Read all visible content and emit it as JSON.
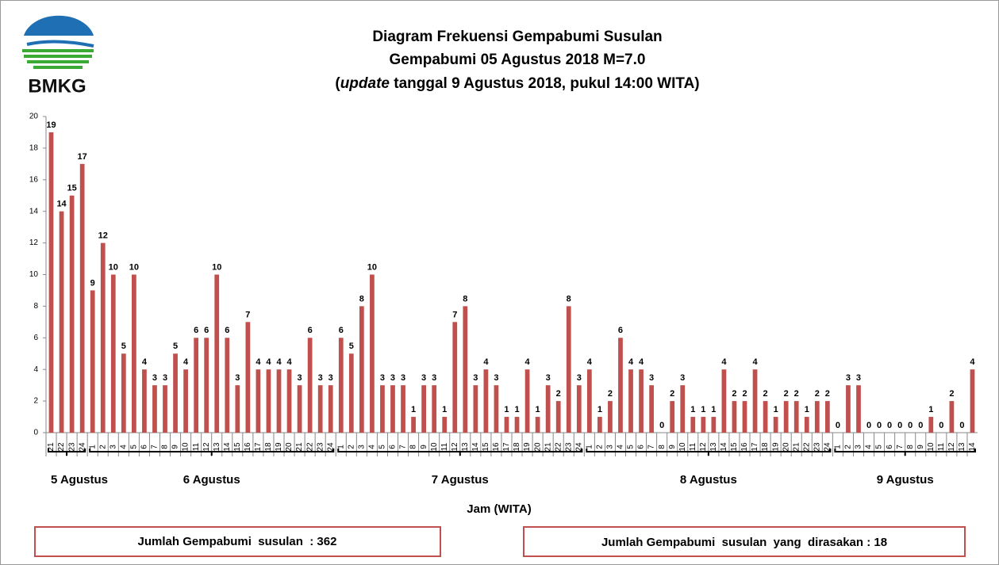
{
  "chart_data": {
    "type": "bar",
    "title": "Diagram Frekuensi Gempabumi Susulan",
    "subtitle": "Gempabumi 05 Agustus 2018 M=7.0",
    "subtitle_parts": [
      "(",
      "update",
      " tanggal 9 Agustus 2018, pukul 14:00 WITA)"
    ],
    "logo": "BMKG",
    "xlabel": "Jam (WITA)",
    "categories": [
      "21",
      "22",
      "23",
      "24",
      "1",
      "2",
      "3",
      "4",
      "5",
      "6",
      "7",
      "8",
      "9",
      "10",
      "11",
      "12",
      "13",
      "14",
      "15",
      "16",
      "17",
      "18",
      "19",
      "20",
      "21",
      "22",
      "23",
      "24",
      "1",
      "2",
      "3",
      "4",
      "5",
      "6",
      "7",
      "8",
      "9",
      "10",
      "11",
      "12",
      "13",
      "14",
      "15",
      "16",
      "17",
      "18",
      "19",
      "20",
      "21",
      "22",
      "23",
      "24",
      "1",
      "2",
      "3",
      "4",
      "5",
      "6",
      "7",
      "8",
      "9",
      "10",
      "11",
      "12",
      "13",
      "14",
      "15",
      "16",
      "17",
      "18",
      "19",
      "20",
      "21",
      "22",
      "23",
      "24",
      "1",
      "2",
      "3",
      "4",
      "5",
      "6",
      "7",
      "8",
      "9",
      "10",
      "11",
      "12",
      "13",
      "14"
    ],
    "values": [
      19,
      14,
      15,
      17,
      9,
      12,
      10,
      5,
      10,
      4,
      3,
      3,
      5,
      4,
      6,
      6,
      10,
      6,
      3,
      7,
      4,
      4,
      4,
      4,
      3,
      6,
      3,
      3,
      6,
      5,
      8,
      10,
      3,
      3,
      3,
      1,
      3,
      3,
      1,
      7,
      8,
      3,
      4,
      3,
      1,
      1,
      4,
      1,
      3,
      2,
      8,
      3,
      4,
      1,
      2,
      6,
      4,
      4,
      3,
      0,
      2,
      3,
      1,
      1,
      1,
      4,
      2,
      2,
      4,
      2,
      1,
      2,
      2,
      1,
      2,
      2,
      0,
      3,
      3,
      0,
      0,
      0,
      0,
      0,
      0,
      1,
      0,
      2,
      0,
      4
    ],
    "groups": [
      "5 Agustus",
      "6 Agustus",
      "7 Agustus",
      "8 Agustus",
      "9 Agustus"
    ],
    "color": "#c0504d",
    "ylim": [
      0,
      20
    ],
    "yticks": [
      0,
      2,
      4,
      6,
      8,
      10,
      12,
      14,
      16,
      18,
      20
    ],
    "grid": false,
    "summary": [
      "Jumlah Gempabumi  susulan  : 362",
      "Jumlah Gempabumi  susulan  yang  dirasakan : 18"
    ]
  }
}
